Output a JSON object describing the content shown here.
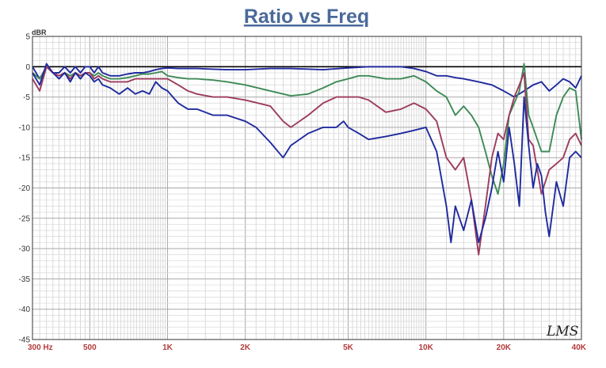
{
  "chart_data": {
    "type": "line",
    "title": "Ratio vs Freq",
    "ylabel": "dBR",
    "xscale": "log",
    "xlim": [
      300,
      40000
    ],
    "ylim": [
      -45,
      5
    ],
    "yticks": [
      5,
      0,
      -5,
      -10,
      -15,
      -20,
      -25,
      -30,
      -35,
      -40,
      -45
    ],
    "yticklabels": [
      "5",
      "0",
      "-5",
      "-10",
      "-15",
      "-20",
      "-25",
      "-30",
      "-35",
      "-40",
      "-45"
    ],
    "xticks": [
      300,
      500,
      1000,
      2000,
      5000,
      10000,
      20000,
      40000
    ],
    "xticklabels": [
      "300 Hz",
      "500",
      "1K",
      "2K",
      "5K",
      "10K",
      "20K",
      "40K"
    ],
    "grid": true,
    "reference_line_db": 0,
    "watermark": "LMS",
    "series": [
      {
        "color": "#1f2a9e",
        "x": [
          300,
          320,
          340,
          360,
          380,
          400,
          420,
          440,
          460,
          480,
          500,
          520,
          540,
          560,
          600,
          650,
          700,
          750,
          800,
          850,
          900,
          950,
          1000,
          1100,
          1200,
          1300,
          1500,
          1700,
          2000,
          2500,
          3000,
          4000,
          5000,
          6000,
          7000,
          8000,
          9000,
          10000,
          11000,
          12000,
          13000,
          14000,
          16000,
          18000,
          20000,
          22000,
          24000,
          26000,
          28000,
          30000,
          32000,
          34000,
          36000,
          38000,
          40000
        ],
        "y": [
          0,
          -2,
          0,
          -1,
          -1,
          0,
          -1,
          0,
          -1,
          0,
          0,
          -1,
          0,
          -1,
          -1.5,
          -1.5,
          -1.2,
          -1,
          -1,
          -0.8,
          -0.5,
          -0.3,
          -0.2,
          -0.3,
          -0.3,
          -0.3,
          -0.4,
          -0.5,
          -0.5,
          -0.3,
          -0.3,
          -0.5,
          -0.2,
          0,
          0,
          0,
          -0.3,
          -0.8,
          -1.5,
          -1.5,
          -1.8,
          -2,
          -2.5,
          -3,
          -4,
          -5,
          -4,
          -3,
          -2.5,
          -4,
          -3,
          -2,
          -2.5,
          -3.5,
          -1.5
        ]
      },
      {
        "color": "#3e8a56",
        "x": [
          300,
          320,
          340,
          360,
          380,
          400,
          420,
          440,
          460,
          480,
          500,
          520,
          540,
          560,
          600,
          650,
          700,
          750,
          800,
          850,
          900,
          950,
          1000,
          1100,
          1200,
          1300,
          1500,
          1700,
          2000,
          2500,
          3000,
          3500,
          4000,
          4500,
          5000,
          5500,
          6000,
          7000,
          8000,
          9000,
          10000,
          11000,
          12000,
          13000,
          14000,
          15000,
          16000,
          17000,
          18000,
          19000,
          20000,
          21000,
          22000,
          23000,
          24000,
          25000,
          26000,
          28000,
          30000,
          32000,
          34000,
          36000,
          38000,
          40000
        ],
        "y": [
          -1,
          -2,
          0,
          -1,
          -1.5,
          -1,
          -1.5,
          -1,
          -1.5,
          -1,
          -1,
          -1.5,
          -1,
          -1.5,
          -2,
          -2,
          -1.8,
          -1.5,
          -1.2,
          -1.2,
          -1,
          -0.8,
          -1.5,
          -1.8,
          -2,
          -2,
          -2.2,
          -2.5,
          -3,
          -4,
          -4.8,
          -4.5,
          -3.5,
          -2.5,
          -2,
          -1.5,
          -1.5,
          -2,
          -2,
          -1.5,
          -2.5,
          -4,
          -5,
          -8,
          -6.5,
          -8,
          -10,
          -14,
          -18,
          -21,
          -16,
          -8,
          -6,
          -4,
          0.5,
          -8,
          -10,
          -14,
          -14,
          -8,
          -5,
          -3.5,
          -4,
          -12
        ]
      },
      {
        "color": "#9c3b5e",
        "x": [
          300,
          320,
          340,
          360,
          380,
          400,
          420,
          440,
          460,
          480,
          500,
          520,
          540,
          560,
          600,
          650,
          700,
          750,
          800,
          850,
          900,
          950,
          1000,
          1100,
          1200,
          1300,
          1500,
          1700,
          2000,
          2500,
          2800,
          3000,
          3500,
          4000,
          4500,
          5000,
          5500,
          6000,
          7000,
          8000,
          9000,
          10000,
          11000,
          12000,
          13000,
          14000,
          15000,
          16000,
          17000,
          18000,
          19000,
          20000,
          21000,
          22000,
          23000,
          24000,
          25000,
          26000,
          28000,
          30000,
          32000,
          34000,
          36000,
          38000,
          40000
        ],
        "y": [
          -2,
          -4,
          0,
          -1,
          -1.5,
          -1,
          -2,
          -1,
          -1.5,
          -1,
          -1,
          -2,
          -1.5,
          -2,
          -2.5,
          -2.5,
          -2.5,
          -2,
          -2,
          -2,
          -2,
          -2,
          -2,
          -3,
          -4,
          -4.5,
          -5,
          -5,
          -5.5,
          -6.5,
          -9,
          -10,
          -8,
          -6,
          -5,
          -5,
          -5,
          -5.5,
          -7.5,
          -7,
          -6,
          -7,
          -9,
          -15,
          -17,
          -15,
          -22,
          -31,
          -23,
          -15,
          -11,
          -12,
          -8,
          -5,
          -3,
          -1,
          -12,
          -13,
          -21,
          -17,
          -16,
          -15,
          -12,
          -11,
          -13
        ]
      },
      {
        "color": "#1f2a9e",
        "x": [
          300,
          320,
          340,
          360,
          380,
          400,
          420,
          440,
          460,
          480,
          500,
          520,
          540,
          560,
          600,
          650,
          700,
          750,
          800,
          850,
          900,
          950,
          1000,
          1100,
          1200,
          1300,
          1500,
          1700,
          2000,
          2200,
          2500,
          2800,
          3000,
          3500,
          4000,
          4500,
          4800,
          5000,
          5500,
          6000,
          7000,
          8000,
          9000,
          10000,
          11000,
          12000,
          12500,
          13000,
          14000,
          15000,
          16000,
          17000,
          18000,
          19000,
          20000,
          21000,
          22000,
          23000,
          24000,
          25000,
          26000,
          27000,
          28000,
          29000,
          30000,
          32000,
          34000,
          36000,
          38000,
          40000
        ],
        "y": [
          -1,
          -3,
          0.5,
          -1,
          -2,
          -1,
          -2.5,
          -1,
          -2,
          -1,
          -1.5,
          -2.5,
          -2,
          -3,
          -3.5,
          -4.5,
          -3.5,
          -4.5,
          -4,
          -4.5,
          -2.5,
          -3.5,
          -4,
          -6,
          -7,
          -7,
          -8,
          -8,
          -9,
          -10,
          -12.5,
          -15,
          -13,
          -11,
          -10,
          -10,
          -9,
          -10,
          -11,
          -12,
          -11.5,
          -11,
          -10.5,
          -10,
          -14,
          -23,
          -29,
          -23,
          -27,
          -22,
          -29,
          -25,
          -20,
          -14,
          -19,
          -10,
          -16,
          -23,
          -5,
          -13,
          -20,
          -16,
          -18,
          -24,
          -28,
          -19,
          -23,
          -15,
          -14,
          -15
        ]
      }
    ]
  }
}
